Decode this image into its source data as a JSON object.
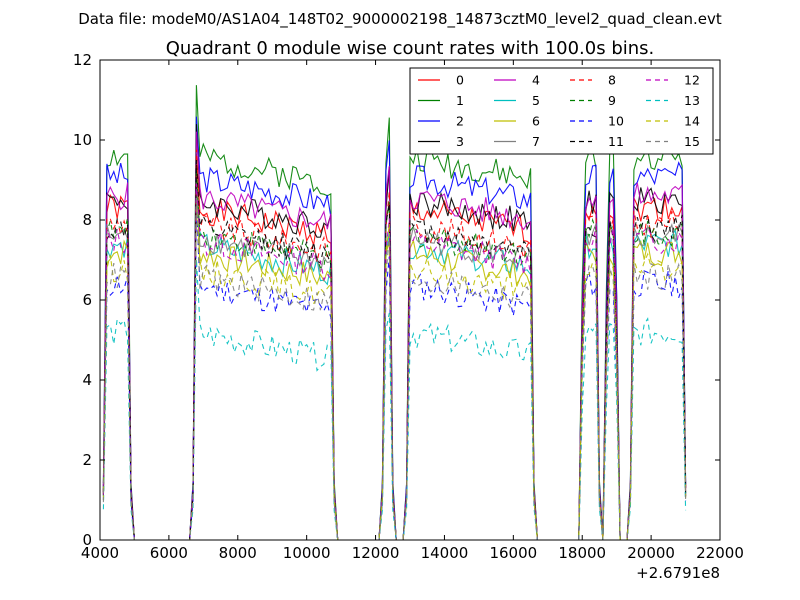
{
  "chart_data": {
    "type": "line",
    "suptitle": "Data file: modeM0/AS1A04_148T02_9000002198_14873cztM0_level2_quad_clean.evt",
    "title": "Quadrant 0 module wise count rates with 100.0s bins.",
    "xlabel": "",
    "ylabel": "",
    "xlim": [
      4000,
      22000
    ],
    "ylim": [
      0,
      12
    ],
    "x_ticks": [
      4000,
      6000,
      8000,
      10000,
      12000,
      14000,
      16000,
      18000,
      20000,
      22000
    ],
    "x_tick_labels": [
      "4000",
      "6000",
      "8000",
      "10000",
      "12000",
      "14000",
      "16000",
      "18000",
      "20000",
      "22000"
    ],
    "y_ticks": [
      0,
      2,
      4,
      6,
      8,
      10,
      12
    ],
    "y_tick_labels": [
      "0",
      "2",
      "4",
      "6",
      "8",
      "10",
      "12"
    ],
    "x_offset_label": "+2.6791e8",
    "legend_position": "top-right",
    "legend_columns": 4,
    "active_intervals": [
      [
        4100,
        4900
      ],
      [
        6700,
        10800
      ],
      [
        12200,
        12500
      ],
      [
        12900,
        16600
      ],
      [
        17950,
        18500
      ],
      [
        18650,
        19050
      ],
      [
        19400,
        21000
      ]
    ],
    "spikes": [
      {
        "x": 6800,
        "offset": 1.8
      },
      {
        "x": 12400,
        "offset": 0.9
      }
    ],
    "series": [
      {
        "name": "0",
        "color": "#ff0000",
        "dash": "solid",
        "level": 8.3
      },
      {
        "name": "1",
        "color": "#008000",
        "dash": "solid",
        "level": 9.6
      },
      {
        "name": "2",
        "color": "#0000ff",
        "dash": "solid",
        "level": 9.1
      },
      {
        "name": "3",
        "color": "#000000",
        "dash": "solid",
        "level": 8.5
      },
      {
        "name": "4",
        "color": "#bf00bf",
        "dash": "solid",
        "level": 8.6
      },
      {
        "name": "5",
        "color": "#00bfbf",
        "dash": "solid",
        "level": 7.4
      },
      {
        "name": "6",
        "color": "#bfbf00",
        "dash": "solid",
        "level": 7.2
      },
      {
        "name": "7",
        "color": "#808080",
        "dash": "solid",
        "level": 7.6
      },
      {
        "name": "8",
        "color": "#ff0000",
        "dash": "dashed",
        "level": 7.9
      },
      {
        "name": "9",
        "color": "#008000",
        "dash": "dashed",
        "level": 7.7
      },
      {
        "name": "10",
        "color": "#0000ff",
        "dash": "dashed",
        "level": 6.4
      },
      {
        "name": "11",
        "color": "#000000",
        "dash": "dashed",
        "level": 7.8
      },
      {
        "name": "12",
        "color": "#bf00bf",
        "dash": "dashed",
        "level": 7.5
      },
      {
        "name": "13",
        "color": "#00bfbf",
        "dash": "dashed",
        "level": 5.2
      },
      {
        "name": "14",
        "color": "#bfbf00",
        "dash": "dashed",
        "level": 6.8
      },
      {
        "name": "15",
        "color": "#808080",
        "dash": "dashed",
        "level": 6.6
      }
    ]
  }
}
